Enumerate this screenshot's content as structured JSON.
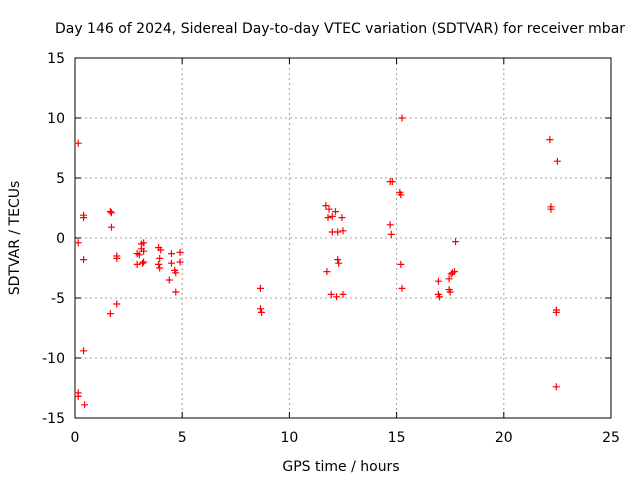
{
  "chart_data": {
    "type": "scatter",
    "title": "Day 146 of 2024, Sidereal Day-to-day VTEC variation (SDTVAR) for receiver mbar",
    "xlabel": "GPS time / hours",
    "ylabel": "SDTVAR / TECUs",
    "xlim": [
      0,
      25
    ],
    "ylim": [
      -15,
      15
    ],
    "xticks": [
      0,
      5,
      10,
      15,
      20,
      25
    ],
    "yticks": [
      -15,
      -10,
      -5,
      0,
      5,
      10,
      15
    ],
    "xtick_labels": [
      "0",
      "5",
      "10",
      "15",
      "20",
      "25"
    ],
    "ytick_labels": [
      "-15",
      "-10",
      "-5",
      "0",
      "5",
      "10",
      "15"
    ],
    "grid": true,
    "marker": "+",
    "color": "#ff0000",
    "series": [
      {
        "name": "SDTVAR",
        "x": [
          0.15,
          0.15,
          0.15,
          0.15,
          0.4,
          0.4,
          0.4,
          0.4,
          0.45,
          1.65,
          1.65,
          1.7,
          1.7,
          1.95,
          1.95,
          1.95,
          2.9,
          2.9,
          3.0,
          3.1,
          3.1,
          3.15,
          3.2,
          3.2,
          3.2,
          3.9,
          3.9,
          3.95,
          3.95,
          4.0,
          4.4,
          4.5,
          4.5,
          4.65,
          4.7,
          4.7,
          4.9,
          4.9,
          8.65,
          8.65,
          8.7,
          11.7,
          11.75,
          11.8,
          11.85,
          11.95,
          12.0,
          12.0,
          12.15,
          12.2,
          12.25,
          12.25,
          12.3,
          12.45,
          12.5,
          12.5,
          14.7,
          14.7,
          14.75,
          14.8,
          15.15,
          15.2,
          15.2,
          15.25,
          15.25,
          16.95,
          16.95,
          17.0,
          17.45,
          17.45,
          17.5,
          17.55,
          17.6,
          17.7,
          17.75,
          22.15,
          22.2,
          22.2,
          22.45,
          22.45,
          22.45,
          22.5
        ],
        "y": [
          7.9,
          -0.4,
          -12.9,
          -13.2,
          1.9,
          1.7,
          -1.8,
          -9.4,
          -13.9,
          2.2,
          -6.3,
          2.1,
          0.9,
          -1.5,
          -1.7,
          -5.5,
          -1.3,
          -2.2,
          -1.4,
          -0.5,
          -0.9,
          -2.1,
          -1.1,
          -2.0,
          -0.4,
          -0.8,
          -2.2,
          -1.7,
          -2.5,
          -1.0,
          -3.5,
          -1.3,
          -2.1,
          -2.7,
          -4.5,
          -2.9,
          -1.2,
          -2.0,
          -4.2,
          -5.9,
          -6.2,
          2.7,
          -2.8,
          1.7,
          2.4,
          -4.7,
          0.5,
          1.8,
          2.2,
          -4.9,
          0.5,
          -1.8,
          -2.1,
          1.7,
          0.6,
          -4.7,
          4.7,
          1.1,
          0.3,
          4.7,
          3.8,
          3.6,
          -2.2,
          10.0,
          -4.2,
          -4.7,
          -3.6,
          -4.9,
          -4.3,
          -3.4,
          -4.5,
          -3.0,
          -2.9,
          -2.8,
          -0.3,
          8.2,
          2.6,
          2.4,
          -6.0,
          -6.2,
          -12.4,
          6.4
        ]
      }
    ]
  }
}
